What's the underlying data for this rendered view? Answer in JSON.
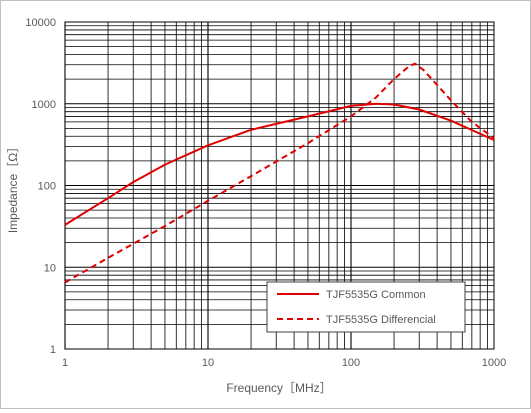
{
  "chart_data": {
    "type": "line",
    "xscale": "log",
    "yscale": "log",
    "xlim": [
      1,
      1000
    ],
    "ylim": [
      1,
      10000
    ],
    "xlabel": "Frequency［MHz］",
    "ylabel": "Impedance［Ω］",
    "x_ticks": [
      "1",
      "10",
      "100",
      "1000"
    ],
    "y_ticks": [
      "1",
      "10",
      "100",
      "1000",
      "10000"
    ],
    "grid": true,
    "legend_position": "bottom-right",
    "series": [
      {
        "name": "TJF5535G Common",
        "style": "solid",
        "color": "#e00000",
        "x": [
          1,
          2,
          3,
          5,
          10,
          20,
          50,
          100,
          150,
          200,
          300,
          500,
          1000
        ],
        "y": [
          33,
          70,
          110,
          180,
          310,
          480,
          700,
          940,
          1000,
          980,
          850,
          620,
          360
        ]
      },
      {
        "name": "TJF5535G Differencial",
        "style": "dashed",
        "color": "#e00000",
        "x": [
          1,
          2,
          5,
          10,
          20,
          50,
          100,
          150,
          200,
          250,
          280,
          320,
          400,
          500,
          700,
          1000
        ],
        "y": [
          6.5,
          13,
          32,
          65,
          130,
          330,
          700,
          1200,
          2000,
          2800,
          3100,
          2600,
          1700,
          1100,
          600,
          380
        ]
      }
    ]
  }
}
